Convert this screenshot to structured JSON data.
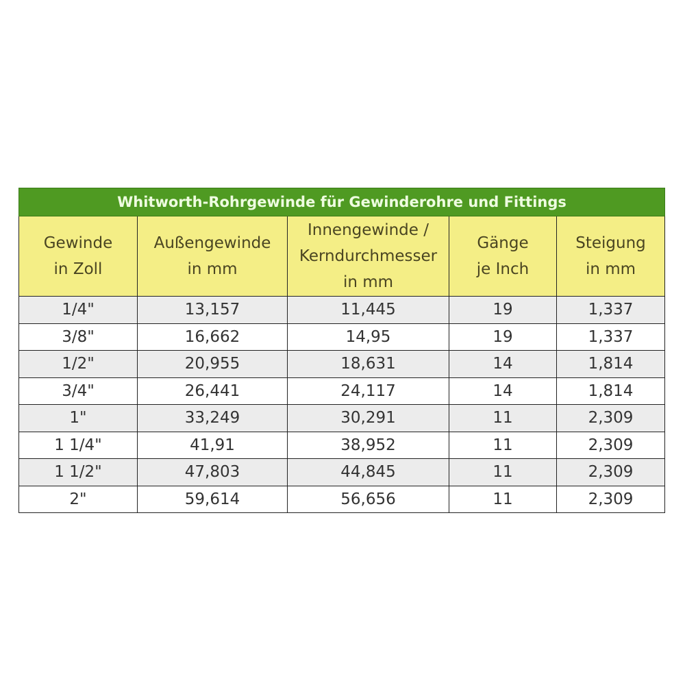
{
  "table": {
    "title": "Whitworth-Rohrgewinde für Gewinderohre und Fittings",
    "columns": [
      [
        "Gewinde",
        "in Zoll"
      ],
      [
        "Außengewinde",
        "in mm"
      ],
      [
        "Innengewinde /",
        "Kerndurchmesser",
        "in mm"
      ],
      [
        "Gänge",
        "je Inch"
      ],
      [
        "Steigung",
        "in mm"
      ]
    ],
    "rows": [
      [
        "1/4\"",
        "13,157",
        "11,445",
        "19",
        "1,337"
      ],
      [
        "3/8\"",
        "16,662",
        "14,95",
        "19",
        "1,337"
      ],
      [
        "1/2\"",
        "20,955",
        "18,631",
        "14",
        "1,814"
      ],
      [
        "3/4\"",
        "26,441",
        "24,117",
        "14",
        "1,814"
      ],
      [
        "1\"",
        "33,249",
        "30,291",
        "11",
        "2,309"
      ],
      [
        "1 1/4\"",
        "41,91",
        "38,952",
        "11",
        "2,309"
      ],
      [
        "1 1/2\"",
        "47,803",
        "44,845",
        "11",
        "2,309"
      ],
      [
        "2\"",
        "59,614",
        "56,656",
        "11",
        "2,309"
      ]
    ],
    "colors": {
      "title_bg": "#4f9a22",
      "header_bg": "#f4ee86",
      "alt_row_bg": "#ececec"
    }
  }
}
